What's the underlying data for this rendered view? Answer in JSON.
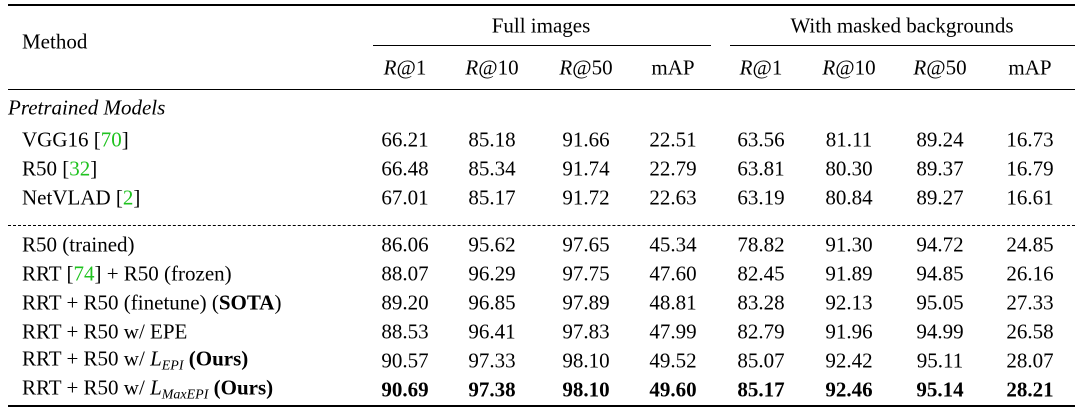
{
  "header": {
    "method": "Method",
    "groups": [
      "Full images",
      "With masked backgrounds"
    ],
    "columns": [
      [
        {
          "text": "R",
          "math": true
        },
        {
          "text": "@1"
        }
      ],
      [
        {
          "text": "R",
          "math": true
        },
        {
          "text": "@10"
        }
      ],
      [
        {
          "text": "R",
          "math": true
        },
        {
          "text": "@50"
        }
      ],
      [
        {
          "text": "mAP"
        }
      ],
      [
        {
          "text": "R",
          "math": true
        },
        {
          "text": "@1"
        }
      ],
      [
        {
          "text": "R",
          "math": true
        },
        {
          "text": "@10"
        }
      ],
      [
        {
          "text": "R",
          "math": true
        },
        {
          "text": "@50"
        }
      ],
      [
        {
          "text": "mAP"
        }
      ]
    ]
  },
  "sections": [
    {
      "title": "Pretrained Models",
      "rows": [
        {
          "method": [
            {
              "text": "VGG16 ["
            },
            {
              "text": "70",
              "cite": true
            },
            {
              "text": "]"
            }
          ],
          "values": [
            "66.21",
            "85.18",
            "91.66",
            "22.51",
            "63.56",
            "81.11",
            "89.24",
            "16.73"
          ]
        },
        {
          "method": [
            {
              "text": "R50 ["
            },
            {
              "text": "32",
              "cite": true
            },
            {
              "text": "]"
            }
          ],
          "values": [
            "66.48",
            "85.34",
            "91.74",
            "22.79",
            "63.81",
            "80.30",
            "89.37",
            "16.79"
          ]
        },
        {
          "method": [
            {
              "text": "NetVLAD ["
            },
            {
              "text": "2",
              "cite": true
            },
            {
              "text": "]"
            }
          ],
          "values": [
            "67.01",
            "85.17",
            "91.72",
            "22.63",
            "63.19",
            "80.84",
            "89.27",
            "16.61"
          ]
        }
      ]
    },
    {
      "rows": [
        {
          "method": [
            {
              "text": "R50 (trained)"
            }
          ],
          "values": [
            "86.06",
            "95.62",
            "97.65",
            "45.34",
            "78.82",
            "91.30",
            "94.72",
            "24.85"
          ]
        },
        {
          "method": [
            {
              "text": "RRT ["
            },
            {
              "text": "74",
              "cite": true
            },
            {
              "text": "] + R50 (frozen)"
            }
          ],
          "values": [
            "88.07",
            "96.29",
            "97.75",
            "47.60",
            "82.45",
            "91.89",
            "94.85",
            "26.16"
          ]
        },
        {
          "method": [
            {
              "text": "RRT + R50 (finetune) ("
            },
            {
              "text": "SOTA",
              "bold": true
            },
            {
              "text": ")"
            }
          ],
          "values": [
            "89.20",
            "96.85",
            "97.89",
            "48.81",
            "83.28",
            "92.13",
            "95.05",
            "27.33"
          ]
        },
        {
          "method": [
            {
              "text": "RRT + R50 w/ EPE"
            }
          ],
          "values": [
            "88.53",
            "96.41",
            "97.83",
            "47.99",
            "82.79",
            "91.96",
            "94.99",
            "26.58"
          ]
        },
        {
          "method": [
            {
              "text": "RRT + R50 w/ "
            },
            {
              "text": "L",
              "math": true
            },
            {
              "text": "EPI",
              "sub": true
            },
            {
              "text": " "
            },
            {
              "text": "(Ours)",
              "bold": true
            }
          ],
          "values": [
            "90.57",
            "97.33",
            "98.10",
            "49.52",
            "85.07",
            "92.42",
            "95.11",
            "28.07"
          ]
        },
        {
          "method": [
            {
              "text": "RRT + R50 w/ "
            },
            {
              "text": "L",
              "math": true
            },
            {
              "text": "MaxEPI",
              "sub": true
            },
            {
              "text": " "
            },
            {
              "text": "(Ours)",
              "bold": true
            }
          ],
          "values": [
            "90.69",
            "97.38",
            "98.10",
            "49.60",
            "85.17",
            "92.46",
            "95.14",
            "28.21"
          ],
          "bold": true
        }
      ]
    }
  ]
}
